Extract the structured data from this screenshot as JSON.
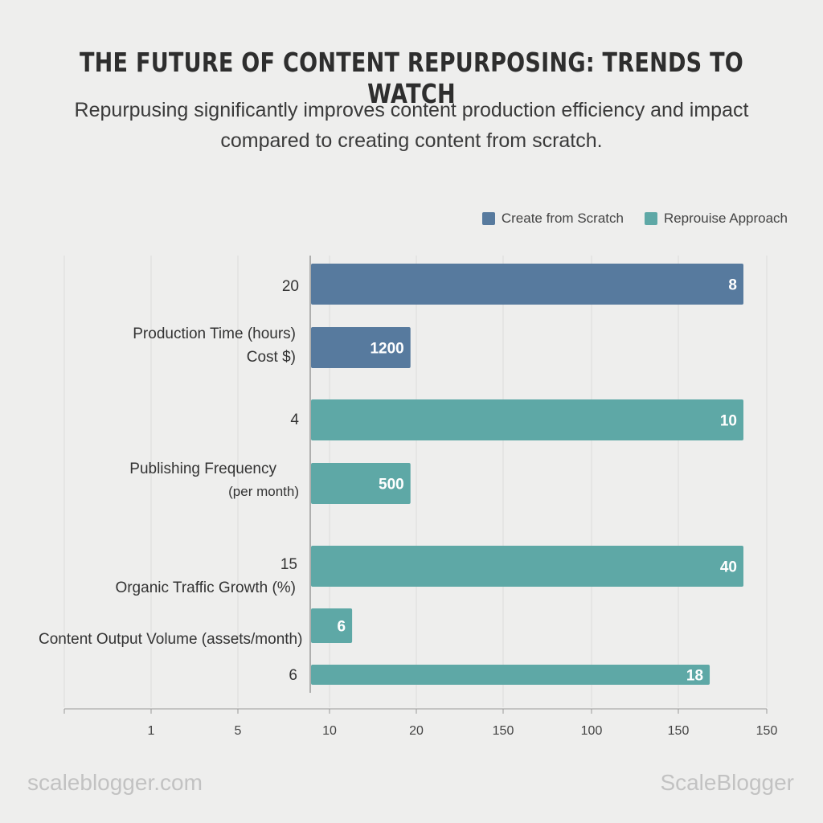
{
  "title": "THE FUTURE OF CONTENT REPURPOSING: TRENDS TO WATCH",
  "subtitle": "Repurpusing significantly improves content production efficiency and impact compared to creating content from scratch.",
  "colors": {
    "scratch": "#577a9e",
    "repurpose": "#5ea8a6",
    "grid": "#dcdcdc",
    "axis": "#999999"
  },
  "chart_data": {
    "type": "bar",
    "orientation": "horizontal",
    "legend": [
      {
        "name": "Create from Scratch",
        "color": "#577a9e"
      },
      {
        "name": "Reprouise Approach",
        "color": "#5ea8a6"
      }
    ],
    "x_ticks": [
      "1",
      "5",
      "10",
      "20",
      "150",
      "100",
      "150",
      "150"
    ],
    "bars": [
      {
        "series": "Create from Scratch",
        "value_fraction": 1.0,
        "data_label": "8"
      },
      {
        "series": "Create from Scratch",
        "value_fraction": 0.23,
        "data_label": "1200"
      },
      {
        "series": "Reprouise Approach",
        "value_fraction": 1.0,
        "data_label": "10"
      },
      {
        "series": "Reprouise Approach",
        "value_fraction": 0.23,
        "data_label": "500"
      },
      {
        "series": "Reprouise Approach",
        "value_fraction": 1.0,
        "data_label": "40"
      },
      {
        "series": "Reprouise Approach",
        "value_fraction": 0.095,
        "data_label": "6"
      },
      {
        "series": "Reprouise Approach",
        "value_fraction": 0.922,
        "data_label": "18"
      }
    ],
    "category_labels": [
      "20",
      "Production Time (hours)",
      "Cost $)",
      "4",
      "Publishing Frequency",
      "(per month)",
      "15",
      "Organic Traffic Growth (%)",
      "Content Output Volume (assets/month)",
      "6"
    ]
  },
  "footer": {
    "left": "scaleblogger.com",
    "right": "ScaleBlogger"
  }
}
